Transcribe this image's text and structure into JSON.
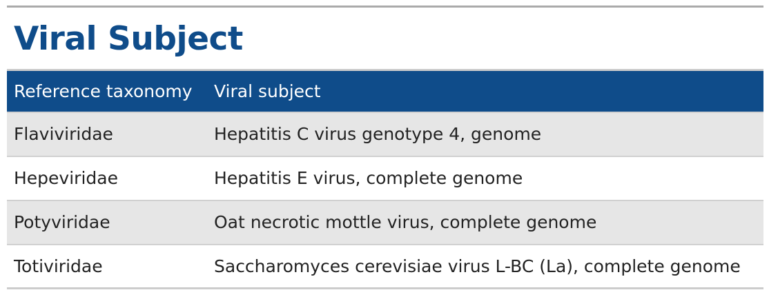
{
  "heading": {
    "title": "Viral Subject"
  },
  "table": {
    "columns": [
      "Reference taxonomy",
      "Viral subject"
    ],
    "rows": [
      {
        "taxonomy": "Flaviviridae",
        "subject": "Hepatitis C virus genotype 4, genome"
      },
      {
        "taxonomy": "Hepeviridae",
        "subject": "Hepatitis E virus, complete genome"
      },
      {
        "taxonomy": "Potyviridae",
        "subject": "Oat necrotic mottle virus, complete genome"
      },
      {
        "taxonomy": "Totiviridae",
        "subject": "Saccharomyces cerevisiae virus L-BC (La), complete genome"
      }
    ]
  },
  "colors": {
    "accent": "#0f4c8a",
    "row_alt": "#e6e6e6",
    "rule": "#aaaaaa"
  }
}
